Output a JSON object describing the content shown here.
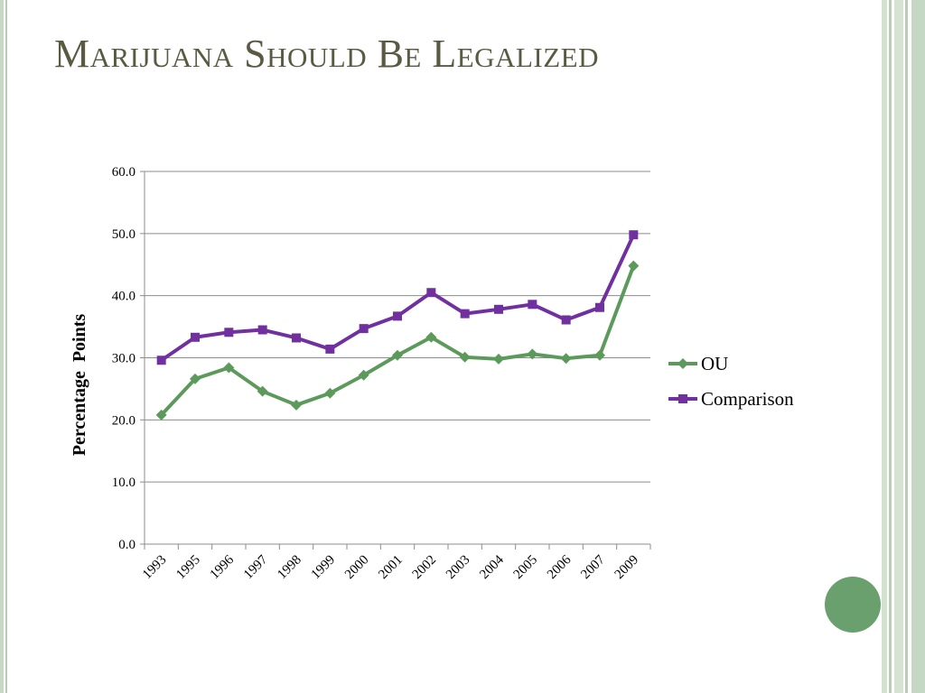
{
  "slide": {
    "title": "Marijuana Should Be Legalized"
  },
  "colors": {
    "ou": "#5c9a5c",
    "comparison": "#7030a0",
    "title": "#5a5a42",
    "border": "#c9d9c7",
    "accent_circle": "#6aa06d"
  },
  "chart_data": {
    "type": "line",
    "title": "",
    "xlabel": "",
    "ylabel": "Percentage  Points",
    "ylim": [
      0,
      60
    ],
    "yticks": [
      "0.0",
      "10.0",
      "20.0",
      "30.0",
      "40.0",
      "50.0",
      "60.0"
    ],
    "categories": [
      "1993",
      "1995",
      "1996",
      "1997",
      "1998",
      "1999",
      "2000",
      "2001",
      "2002",
      "2003",
      "2004",
      "2005",
      "2006",
      "2007",
      "2009"
    ],
    "grid": true,
    "legend_position": "right",
    "series": [
      {
        "name": "OU",
        "marker": "diamond",
        "color": "#5c9a5c",
        "values": [
          20.8,
          26.6,
          28.4,
          24.6,
          22.4,
          24.3,
          27.2,
          30.4,
          33.3,
          30.1,
          29.8,
          30.6,
          29.9,
          30.4,
          44.8
        ]
      },
      {
        "name": "Comparison",
        "marker": "square",
        "color": "#7030a0",
        "values": [
          29.6,
          33.3,
          34.1,
          34.5,
          33.2,
          31.4,
          34.7,
          36.7,
          40.5,
          37.1,
          37.8,
          38.6,
          36.1,
          38.1,
          49.8
        ]
      }
    ]
  }
}
